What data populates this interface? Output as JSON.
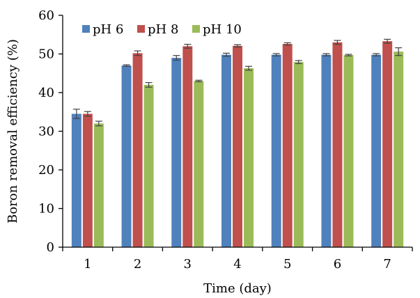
{
  "chart_data": {
    "type": "bar",
    "title": "",
    "xlabel": "Time (day)",
    "ylabel": "Boron removal efficiency (%)",
    "ylim": [
      0,
      60
    ],
    "yticks": [
      "0",
      "10",
      "20",
      "30",
      "40",
      "50",
      "60"
    ],
    "categories": [
      "1",
      "2",
      "3",
      "4",
      "5",
      "6",
      "7"
    ],
    "series": [
      {
        "name": "pH 6",
        "color": "#4F81BD",
        "values": [
          34.5,
          47.0,
          49.0,
          49.8,
          49.8,
          49.8,
          49.8
        ],
        "errors": [
          1.2,
          0.2,
          0.6,
          0.4,
          0.3,
          0.3,
          0.3
        ]
      },
      {
        "name": "pH 8",
        "color": "#C0504D",
        "values": [
          34.5,
          50.2,
          52.0,
          52.1,
          52.6,
          53.0,
          53.3
        ],
        "errors": [
          0.6,
          0.6,
          0.5,
          0.3,
          0.3,
          0.5,
          0.5
        ]
      },
      {
        "name": "pH 10",
        "color": "#9BBB59",
        "values": [
          32.0,
          42.0,
          43.0,
          46.3,
          47.9,
          49.7,
          50.6
        ],
        "errors": [
          0.6,
          0.6,
          0.2,
          0.5,
          0.4,
          0.2,
          1.0
        ]
      }
    ],
    "grid": false,
    "legend": "top-left"
  }
}
